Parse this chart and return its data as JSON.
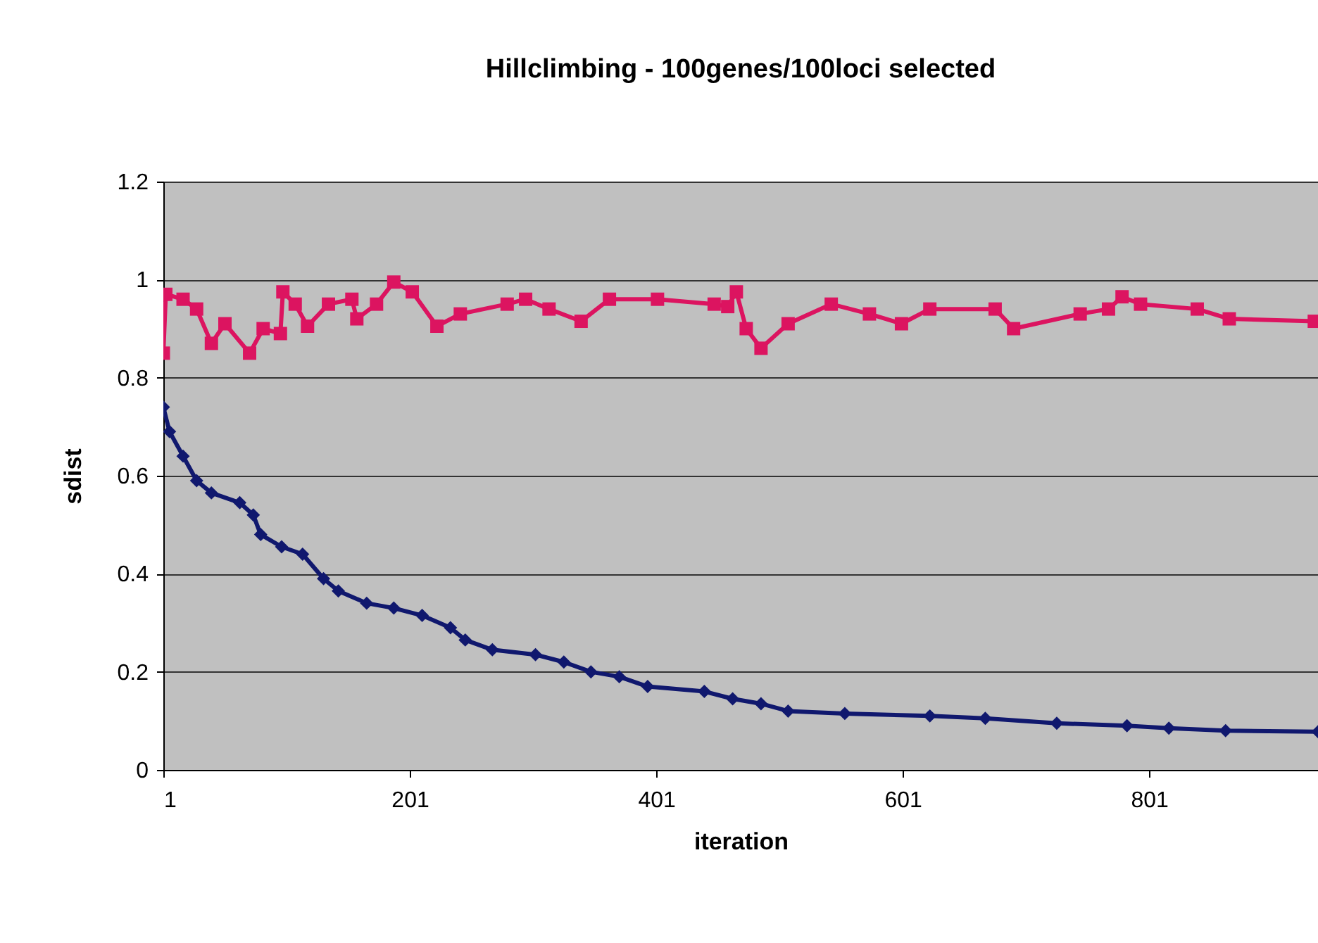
{
  "chart_data": {
    "type": "line",
    "title": "Hillclimbing - 100genes/100loci selected",
    "xlabel": "iteration",
    "ylabel": "sdist",
    "xlim": [
      1,
      938
    ],
    "xticks": [
      1,
      201,
      401,
      601,
      801
    ],
    "ylim": [
      0,
      1.2
    ],
    "yticks": [
      0,
      0.2,
      0.4,
      0.6,
      0.8,
      1,
      1.2
    ],
    "grid": "y",
    "line_style": "solid",
    "series": [
      {
        "color": "#10186e",
        "marker": "diamond",
        "x": [
          1,
          6,
          17,
          28,
          40,
          63,
          74,
          80,
          97,
          114,
          131,
          143,
          166,
          188,
          211,
          234,
          246,
          268,
          303,
          326,
          348,
          371,
          394,
          440,
          463,
          486,
          508,
          554,
          623,
          668,
          726,
          783,
          817,
          863,
          938
        ],
        "values": [
          0.74,
          0.69,
          0.64,
          0.59,
          0.565,
          0.545,
          0.52,
          0.48,
          0.455,
          0.44,
          0.39,
          0.365,
          0.34,
          0.33,
          0.315,
          0.29,
          0.265,
          0.245,
          0.235,
          0.22,
          0.2,
          0.19,
          0.17,
          0.16,
          0.145,
          0.135,
          0.12,
          0.115,
          0.11,
          0.105,
          0.095,
          0.09,
          0.085,
          0.08,
          0.078
        ]
      },
      {
        "color": "#dc1460",
        "marker": "square",
        "x": [
          1,
          3,
          17,
          28,
          40,
          51,
          71,
          82,
          96,
          98,
          108,
          118,
          135,
          154,
          158,
          174,
          188,
          203,
          223,
          242,
          280,
          295,
          314,
          340,
          363,
          402,
          448,
          459,
          466,
          474,
          486,
          508,
          543,
          574,
          600,
          623,
          676,
          691,
          745,
          768,
          779,
          794,
          840,
          866,
          935
        ],
        "values": [
          0.85,
          0.97,
          0.96,
          0.94,
          0.87,
          0.91,
          0.85,
          0.9,
          0.89,
          0.975,
          0.95,
          0.905,
          0.95,
          0.96,
          0.92,
          0.95,
          0.995,
          0.975,
          0.905,
          0.93,
          0.95,
          0.96,
          0.94,
          0.915,
          0.96,
          0.96,
          0.95,
          0.945,
          0.975,
          0.9,
          0.86,
          0.91,
          0.95,
          0.93,
          0.91,
          0.94,
          0.94,
          0.9,
          0.93,
          0.94,
          0.965,
          0.95,
          0.94,
          0.92,
          0.915
        ]
      }
    ]
  }
}
